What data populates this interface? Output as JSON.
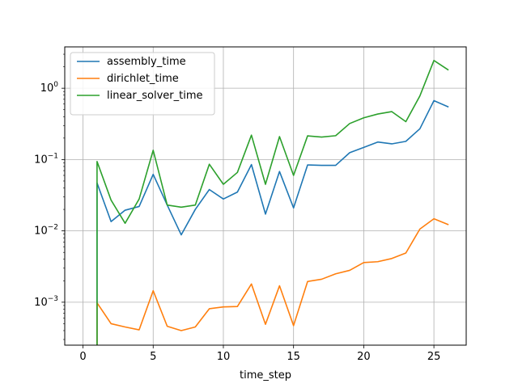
{
  "chart_data": {
    "type": "line",
    "xlabel": "time_step",
    "ylabel": "",
    "title": "",
    "yscale": "log",
    "xlim": [
      -1.3,
      27.3
    ],
    "ylim": [
      0.00025,
      3.8
    ],
    "grid": true,
    "legend_position": "top-left",
    "x_ticks": [
      0,
      5,
      10,
      15,
      20,
      25
    ],
    "x_tick_labels": [
      "0",
      "5",
      "10",
      "15",
      "20",
      "25"
    ],
    "y_ticks": [
      0.001,
      0.01,
      0.1,
      1
    ],
    "y_tick_labels": [
      {
        "base": "10",
        "exp": "−3"
      },
      {
        "base": "10",
        "exp": "−2"
      },
      {
        "base": "10",
        "exp": "−1"
      },
      {
        "base": "10",
        "exp": "0"
      }
    ],
    "x": [
      1,
      2,
      3,
      4,
      5,
      6,
      7,
      8,
      9,
      10,
      11,
      12,
      13,
      14,
      15,
      16,
      17,
      18,
      19,
      20,
      21,
      22,
      23,
      24,
      25,
      26
    ],
    "series": [
      {
        "name": "assembly_time",
        "color": "#1f77b4",
        "start": {
          "x": 1,
          "y": 0.0001
        },
        "values": [
          0.047,
          0.0135,
          0.0195,
          0.022,
          0.062,
          0.023,
          0.0088,
          0.02,
          0.038,
          0.028,
          0.035,
          0.085,
          0.0172,
          0.068,
          0.021,
          0.084,
          0.083,
          0.083,
          0.125,
          0.148,
          0.176,
          0.166,
          0.18,
          0.27,
          0.67,
          0.55
        ]
      },
      {
        "name": "dirichlet_time",
        "color": "#ff7f0e",
        "start": {
          "x": 1,
          "y": 0.0001
        },
        "values": [
          0.00098,
          0.0005,
          0.00045,
          0.00041,
          0.00145,
          0.00046,
          0.0004,
          0.00045,
          0.00081,
          0.00086,
          0.00087,
          0.0018,
          0.00049,
          0.0017,
          0.00047,
          0.00195,
          0.0021,
          0.0025,
          0.0028,
          0.0036,
          0.0037,
          0.0041,
          0.0049,
          0.0106,
          0.0148,
          0.0123
        ]
      },
      {
        "name": "linear_solver_time",
        "color": "#2ca02c",
        "start": {
          "x": 1,
          "y": 0.0001
        },
        "values": [
          0.094,
          0.027,
          0.0128,
          0.028,
          0.135,
          0.023,
          0.0215,
          0.023,
          0.086,
          0.045,
          0.066,
          0.22,
          0.045,
          0.21,
          0.06,
          0.215,
          0.207,
          0.216,
          0.32,
          0.385,
          0.435,
          0.47,
          0.34,
          0.78,
          2.45,
          1.82
        ]
      }
    ]
  }
}
